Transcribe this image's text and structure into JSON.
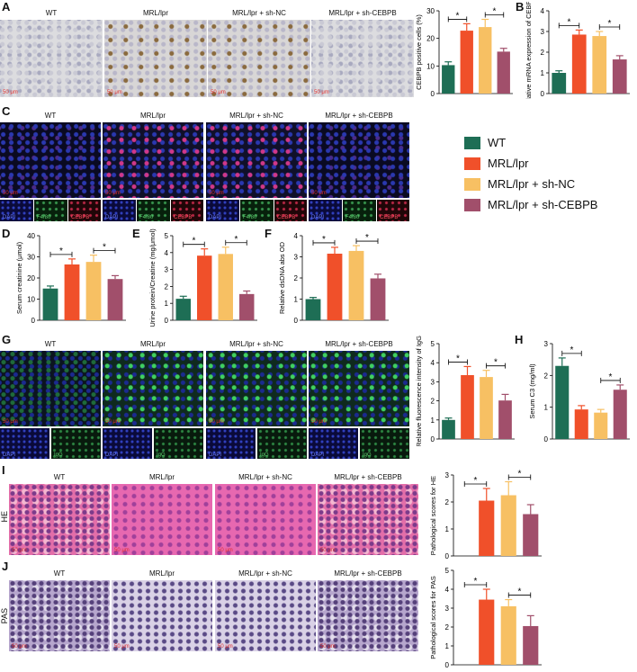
{
  "groups": [
    "WT",
    "MRL/lpr",
    "MRL/lpr + sh-NC",
    "MRL/lpr + sh-CEBPB"
  ],
  "colors": {
    "WT": "#1e6e55",
    "MRL/lpr": "#f0502a",
    "MRL/lpr + sh-NC": "#f7c063",
    "MRL/lpr + sh-CEBPB": "#a14f6b"
  },
  "panel_letters": [
    "A",
    "B",
    "C",
    "D",
    "E",
    "F",
    "G",
    "H",
    "I",
    "J"
  ],
  "scale_label": "50 μm",
  "channel_labels": {
    "dapi": "DAPI",
    "f480": "F4/80",
    "cebpb": "CEBPB",
    "igg": "IgG"
  },
  "row_labels": {
    "he": "HE",
    "pas": "PAS"
  },
  "legend": [
    "WT",
    "MRL/lpr",
    "MRL/lpr + sh-NC",
    "MRL/lpr + sh-CEBPB"
  ],
  "chart_data": [
    {
      "panel": "A",
      "type": "bar",
      "ylabel": "CEBPB positive cells (%)",
      "ylim": [
        0,
        30
      ],
      "yticks": [
        0,
        10,
        20,
        30
      ],
      "values": [
        10.3,
        22.8,
        24.1,
        15.2
      ],
      "errors": [
        1.2,
        2.5,
        2.8,
        1.2
      ],
      "sig": [
        [
          0,
          1
        ],
        [
          2,
          3
        ]
      ]
    },
    {
      "panel": "B",
      "type": "bar",
      "ylabel": "Relative mRNA expression of CEBPB",
      "ylim": [
        0,
        4
      ],
      "yticks": [
        0,
        1,
        2,
        3,
        4
      ],
      "values": [
        1.0,
        2.85,
        2.78,
        1.65
      ],
      "errors": [
        0.1,
        0.22,
        0.22,
        0.18
      ],
      "sig": [
        [
          0,
          1
        ],
        [
          2,
          3
        ]
      ]
    },
    {
      "panel": "D",
      "type": "bar",
      "ylabel": "Serum creatinine (μmol)",
      "ylim": [
        0,
        40
      ],
      "yticks": [
        0,
        10,
        20,
        30,
        40
      ],
      "values": [
        15.0,
        26.4,
        27.6,
        19.5
      ],
      "errors": [
        1.2,
        2.6,
        3.2,
        1.6
      ],
      "sig": [
        [
          0,
          1
        ],
        [
          2,
          3
        ]
      ]
    },
    {
      "panel": "E",
      "type": "bar",
      "ylabel": "Urine protein/Creatine (mg/μmol)",
      "ylim": [
        0,
        5
      ],
      "yticks": [
        0,
        1,
        2,
        3,
        4,
        5
      ],
      "values": [
        1.27,
        3.82,
        3.92,
        1.55
      ],
      "errors": [
        0.15,
        0.4,
        0.4,
        0.18
      ],
      "sig": [
        [
          0,
          1
        ],
        [
          2,
          3
        ]
      ]
    },
    {
      "panel": "F",
      "type": "bar",
      "ylabel": "Relative dsDNA abs OD",
      "ylim": [
        0,
        4
      ],
      "yticks": [
        0,
        1,
        2,
        3,
        4
      ],
      "values": [
        1.0,
        3.15,
        3.28,
        1.98
      ],
      "errors": [
        0.08,
        0.3,
        0.25,
        0.2
      ],
      "sig": [
        [
          0,
          1
        ],
        [
          2,
          3
        ]
      ]
    },
    {
      "panel": "G",
      "type": "bar",
      "ylabel": "Relative fluorescence intensity of IgG",
      "ylim": [
        0,
        5
      ],
      "yticks": [
        0,
        1,
        2,
        3,
        4,
        5
      ],
      "values": [
        1.0,
        3.35,
        3.25,
        2.02
      ],
      "errors": [
        0.1,
        0.45,
        0.35,
        0.32
      ],
      "sig": [
        [
          0,
          1
        ],
        [
          2,
          3
        ]
      ]
    },
    {
      "panel": "H",
      "type": "bar",
      "ylabel": "Serum C3 (mg/ml)",
      "ylim": [
        0,
        3
      ],
      "yticks": [
        0,
        1,
        2,
        3
      ],
      "values": [
        2.3,
        0.93,
        0.83,
        1.55
      ],
      "errors": [
        0.25,
        0.12,
        0.1,
        0.15
      ],
      "sig": [
        [
          0,
          1
        ],
        [
          2,
          3
        ]
      ]
    },
    {
      "panel": "I",
      "type": "bar",
      "ylabel": "Pathological scores for HE",
      "ylim": [
        0,
        3
      ],
      "yticks": [
        0,
        1,
        2,
        3
      ],
      "values": [
        0,
        2.05,
        2.25,
        1.55
      ],
      "errors": [
        0,
        0.45,
        0.5,
        0.35
      ],
      "sig": [
        [
          0,
          1
        ],
        [
          2,
          3
        ]
      ]
    },
    {
      "panel": "J",
      "type": "bar",
      "ylabel": "Pathological scores for PAS",
      "ylim": [
        0,
        5
      ],
      "yticks": [
        0,
        1,
        2,
        3,
        4,
        5
      ],
      "values": [
        0,
        3.45,
        3.1,
        2.05
      ],
      "errors": [
        0,
        0.55,
        0.35,
        0.55
      ],
      "sig": [
        [
          0,
          1
        ],
        [
          2,
          3
        ]
      ]
    }
  ]
}
